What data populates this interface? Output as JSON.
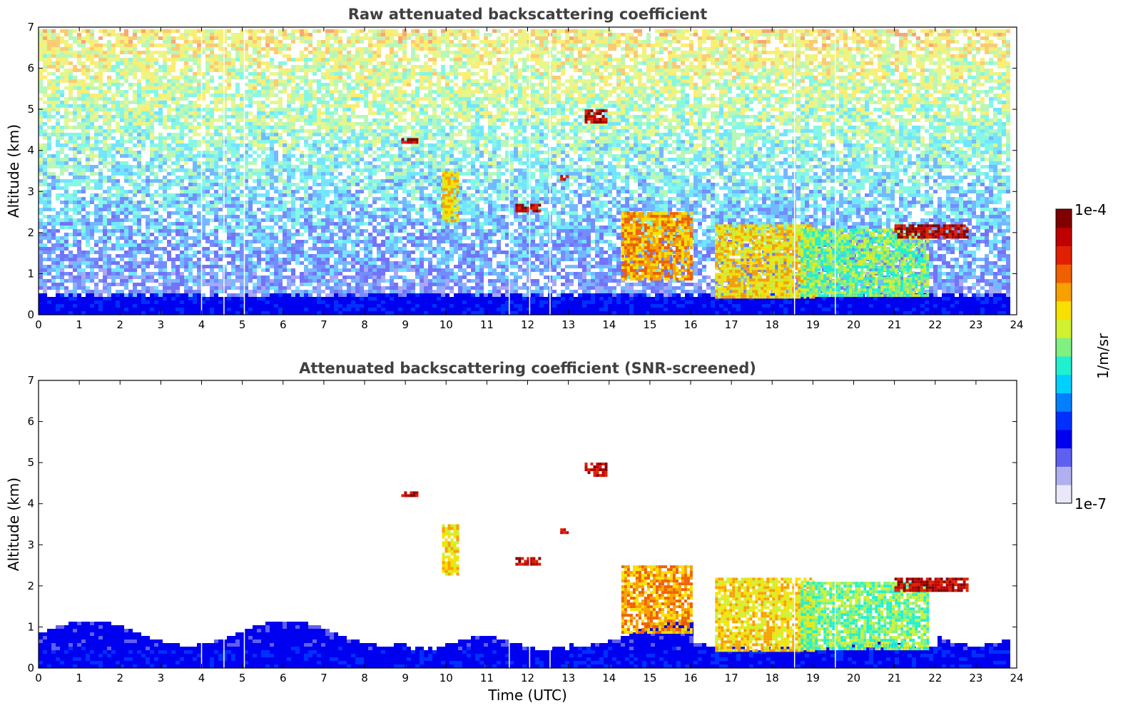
{
  "chart_data": [
    {
      "type": "heatmap",
      "title": "Raw attenuated backscattering coefficient",
      "xlabel": "",
      "ylabel": "Altitude (km)",
      "xlim": [
        0,
        24
      ],
      "ylim": [
        0,
        7
      ],
      "x_ticks": [
        "0",
        "1",
        "2",
        "3",
        "4",
        "5",
        "6",
        "7",
        "8",
        "9",
        "10",
        "11",
        "12",
        "13",
        "14",
        "15",
        "16",
        "17",
        "18",
        "19",
        "20",
        "21",
        "22",
        "23",
        "24"
      ],
      "y_ticks": [
        "0",
        "1",
        "2",
        "3",
        "4",
        "5",
        "6",
        "7"
      ],
      "data_end_time": 23.8,
      "gap_times": [
        4.0,
        4.55,
        5.05,
        11.55,
        12.05,
        12.55,
        18.55,
        19.55
      ],
      "boundary_layer_top_km": 0.5,
      "noise_increases_with_altitude": true,
      "features": [
        {
          "t0": 14.3,
          "t1": 16.0,
          "base": 0.9,
          "top": 2.5,
          "level": "orange"
        },
        {
          "t0": 16.6,
          "t1": 19.0,
          "base": 0.4,
          "top": 2.2,
          "level": "yellow"
        },
        {
          "t0": 18.7,
          "t1": 21.8,
          "base": 0.5,
          "top": 2.1,
          "level": "green"
        },
        {
          "t0": 21.0,
          "t1": 22.8,
          "base": 1.9,
          "top": 2.2,
          "level": "red"
        },
        {
          "t0": 11.7,
          "t1": 12.3,
          "base": 2.5,
          "top": 2.7,
          "level": "red"
        },
        {
          "t0": 13.4,
          "t1": 13.9,
          "base": 4.7,
          "top": 5.0,
          "level": "red"
        },
        {
          "t0": 12.8,
          "t1": 13.0,
          "base": 3.3,
          "top": 3.4,
          "level": "red"
        },
        {
          "t0": 8.9,
          "t1": 9.3,
          "base": 4.2,
          "top": 4.3,
          "level": "red"
        },
        {
          "t0": 9.9,
          "t1": 10.3,
          "base": 2.3,
          "top": 3.5,
          "level": "yellow"
        }
      ]
    },
    {
      "type": "heatmap",
      "title": "Attenuated backscattering coefficient (SNR-screened)",
      "xlabel": "Time (UTC)",
      "ylabel": "Altitude (km)",
      "xlim": [
        0,
        24
      ],
      "ylim": [
        0,
        7
      ],
      "x_ticks": [
        "0",
        "1",
        "2",
        "3",
        "4",
        "5",
        "6",
        "7",
        "8",
        "9",
        "10",
        "11",
        "12",
        "13",
        "14",
        "15",
        "16",
        "17",
        "18",
        "19",
        "20",
        "21",
        "22",
        "23",
        "24"
      ],
      "y_ticks": [
        "0",
        "1",
        "2",
        "3",
        "4",
        "5",
        "6",
        "7"
      ],
      "data_end_time": 23.8,
      "screened": true
    }
  ],
  "colorbar": {
    "label": "1/m/sr",
    "max_label": "1e-4",
    "min_label": "1e-7",
    "scale": "log",
    "colormap": [
      "#e8e8f8",
      "#b0b0f0",
      "#6060f0",
      "#0000f0",
      "#0030ff",
      "#0080ff",
      "#00d0ff",
      "#20f0d0",
      "#80f080",
      "#d0f030",
      "#f8e000",
      "#f8a000",
      "#f06000",
      "#e02000",
      "#c00000",
      "#800000"
    ]
  }
}
